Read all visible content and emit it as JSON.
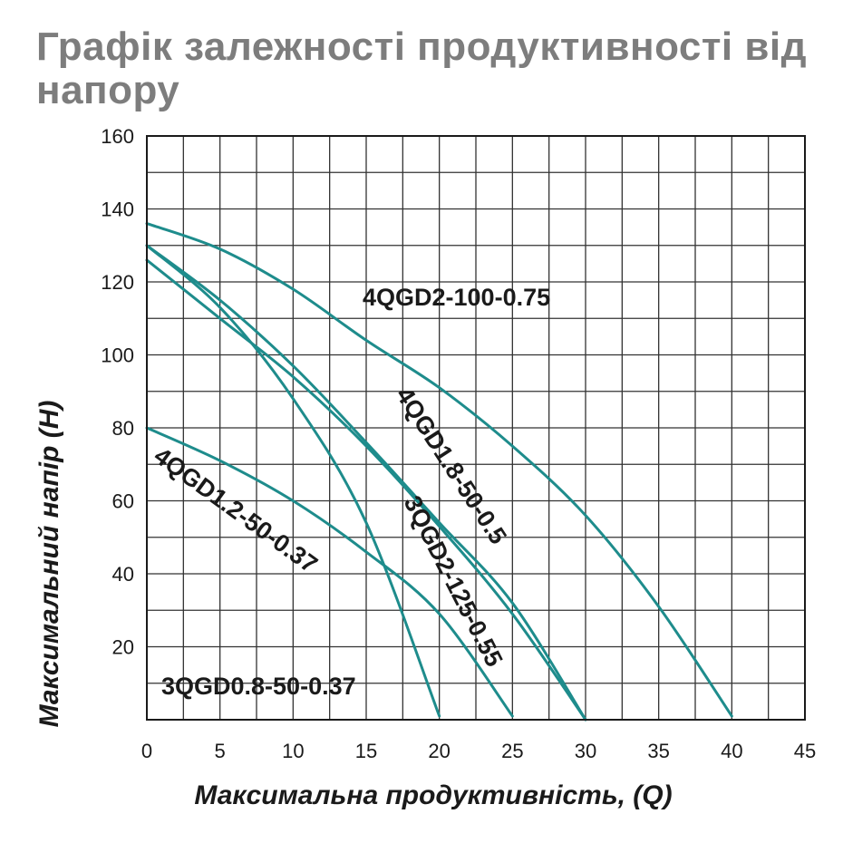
{
  "chart_data": {
    "type": "line",
    "title": "Графік залежності продуктивності від напору",
    "xlabel": "Максимальна продуктивність, (Q)",
    "ylabel": "Максимальний напір (H)",
    "xlim": [
      0,
      45
    ],
    "ylim": [
      0,
      160
    ],
    "xticks": [
      0,
      5,
      10,
      15,
      20,
      25,
      30,
      35,
      40,
      45
    ],
    "yticks": [
      20,
      40,
      60,
      80,
      100,
      120,
      140,
      160
    ],
    "grid": true,
    "line_color": "#1e8c8c",
    "series": [
      {
        "name": "4QGD2-100-0.75",
        "x": [
          0,
          5,
          10,
          15,
          20,
          25,
          30,
          35,
          40
        ],
        "y": [
          136,
          129,
          118,
          104,
          91,
          75,
          56,
          31,
          1
        ]
      },
      {
        "name": "4QGD1.8-50-0.5",
        "x": [
          0,
          5,
          10,
          15,
          20,
          25,
          30
        ],
        "y": [
          130,
          115,
          97,
          76,
          54,
          32,
          0
        ]
      },
      {
        "name": "3QGD2-125-0.55",
        "x": [
          0,
          5,
          10,
          15,
          20,
          25,
          30
        ],
        "y": [
          126,
          110,
          94,
          75,
          53,
          29,
          0
        ]
      },
      {
        "name": "4QGD1.2-50-0.37",
        "x": [
          0,
          5,
          10,
          15,
          20,
          25
        ],
        "y": [
          80,
          71,
          60,
          46,
          29,
          1
        ]
      },
      {
        "name": "3QGD0.8-50-0.37",
        "x": [
          0,
          5,
          10,
          15,
          20
        ],
        "y": [
          130,
          113,
          88,
          54,
          1
        ]
      }
    ]
  }
}
